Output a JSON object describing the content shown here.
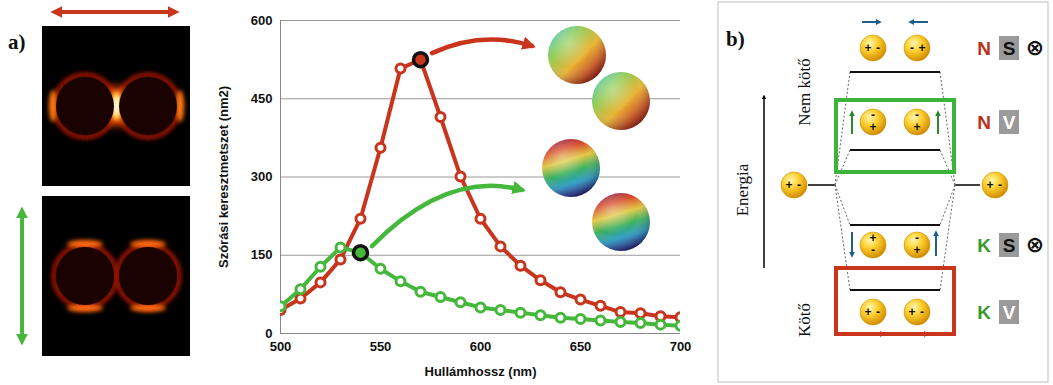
{
  "panel_a": {
    "label": "a)"
  },
  "chart_data": {
    "type": "line",
    "x_label": "Hullámhossz (nm)",
    "y_label": "Szórási keresztmetszet (nm2)",
    "x": [
      500,
      510,
      520,
      530,
      540,
      550,
      560,
      570,
      580,
      590,
      600,
      610,
      620,
      630,
      640,
      650,
      660,
      670,
      680,
      690,
      700
    ],
    "series": [
      {
        "color": "#c8341c",
        "marker": "circle",
        "highlight_x": 570,
        "values": [
          45,
          67,
          98,
          142,
          220,
          356,
          508,
          525,
          415,
          301,
          220,
          167,
          130,
          102,
          79,
          65,
          53,
          41,
          39,
          33,
          31
        ]
      },
      {
        "color": "#45b83c",
        "marker": "circle",
        "highlight_x": 540,
        "values": [
          52,
          85,
          128,
          165,
          155,
          124,
          100,
          80,
          70,
          60,
          50,
          45,
          40,
          35,
          30,
          28,
          25,
          22,
          20,
          17,
          15
        ]
      }
    ],
    "xlim": [
      500,
      700
    ],
    "xticks": [
      500,
      550,
      600,
      650,
      700
    ],
    "ylim": [
      0,
      600
    ],
    "yticks": [
      0,
      150,
      300,
      450,
      600
    ],
    "grid": "y"
  },
  "panel_b": {
    "label": "b)",
    "axis_label": "Energia",
    "group_labels": {
      "upper": "Nem kötő",
      "lower": "Kötő"
    },
    "single": {
      "axis": "horizontal",
      "charges": [
        "+",
        "-"
      ]
    },
    "levels": [
      {
        "tags": [
          {
            "text": "N",
            "color": "#b8321c"
          },
          {
            "text": "S",
            "box": "#9a9a9a",
            "color": "#111111"
          },
          {
            "text": "⊗",
            "color": "#111111"
          }
        ],
        "axis": "horizontal",
        "charges": [
          [
            "+",
            "-"
          ],
          [
            "-",
            "+"
          ]
        ]
      },
      {
        "tags": [
          {
            "text": "N",
            "color": "#b8321c"
          },
          {
            "text": "V",
            "box": "#9a9a9a",
            "color": "#ffffff"
          }
        ],
        "axis": "vertical",
        "charges": [
          [
            "-",
            "+"
          ],
          [
            "-",
            "+"
          ]
        ],
        "box": "#3cb43c"
      },
      {
        "tags": [
          {
            "text": "K",
            "color": "#3a9a2a"
          },
          {
            "text": "S",
            "box": "#9a9a9a",
            "color": "#111111"
          },
          {
            "text": "⊗",
            "color": "#111111"
          }
        ],
        "axis": "vertical",
        "charges": [
          [
            "+",
            "-"
          ],
          [
            "-",
            "+"
          ]
        ]
      },
      {
        "tags": [
          {
            "text": "K",
            "color": "#3a9a2a"
          },
          {
            "text": "V",
            "box": "#9a9a9a",
            "color": "#ffffff"
          }
        ],
        "axis": "horizontal",
        "charges": [
          [
            "+",
            "-"
          ],
          [
            "+",
            "-"
          ]
        ],
        "box": "#c8341c"
      }
    ]
  }
}
